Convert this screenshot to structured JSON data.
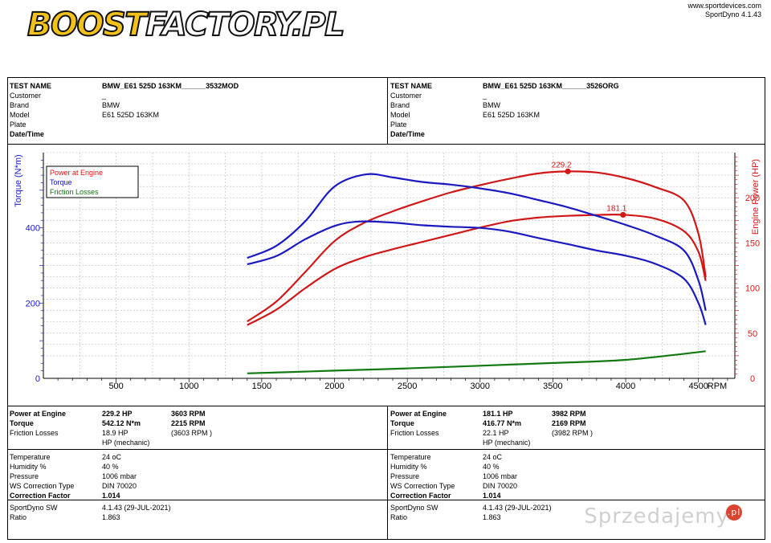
{
  "header": {
    "logo_part1": "BOOST",
    "logo_part2": "FACTORY.PL",
    "website": "www.sportdevices.com",
    "software": "SportDyno 4.1.43"
  },
  "tests": [
    {
      "rows": [
        {
          "k": "TEST NAME",
          "v": "BMW_E61 525D 163KM______3532MOD",
          "bold": true
        },
        {
          "k": "Customer",
          "v": "_",
          "bold": false
        },
        {
          "k": "Brand",
          "v": "BMW",
          "bold": false
        },
        {
          "k": "Model",
          "v": "E61 525D 163KM",
          "bold": false
        },
        {
          "k": "Plate",
          "v": "",
          "bold": false
        },
        {
          "k": "Date/Time",
          "v": "",
          "bold": true
        }
      ]
    },
    {
      "rows": [
        {
          "k": "TEST NAME",
          "v": "BMW_E61 525D 163KM______3526ORG",
          "bold": true
        },
        {
          "k": "Customer",
          "v": "_",
          "bold": false
        },
        {
          "k": "Brand",
          "v": "BMW",
          "bold": false
        },
        {
          "k": "Model",
          "v": "E61 525D 163KM",
          "bold": false
        },
        {
          "k": "Plate",
          "v": "",
          "bold": false
        },
        {
          "k": "Date/Time",
          "v": "",
          "bold": true
        }
      ]
    }
  ],
  "chart_data": {
    "type": "line",
    "xlabel": "RPM",
    "ylabel_left": "Torque (N*m)",
    "ylabel_right": "Engine Power (HP)",
    "xlim": [
      0,
      4750
    ],
    "ylim_left": [
      0,
      600
    ],
    "ylim_right": [
      0,
      250
    ],
    "x_ticks": [
      500,
      1000,
      1500,
      2000,
      2500,
      3000,
      3500,
      4000,
      4500
    ],
    "y_left_ticks": [
      0,
      200,
      400
    ],
    "y_right_ticks": [
      0,
      50,
      100,
      150,
      200
    ],
    "grid": true,
    "legend_position": "top-left",
    "legend": [
      {
        "name": "Power at Engine",
        "color": "#e01010"
      },
      {
        "name": "Torque",
        "color": "#1010cc"
      },
      {
        "name": "Friction Losses",
        "color": "#107010"
      }
    ],
    "series": [
      {
        "name": "Power at Engine",
        "axis": "right",
        "color": "#d01818",
        "x": [
          1400,
          1600,
          1800,
          2000,
          2200,
          2400,
          2600,
          2800,
          3000,
          3200,
          3400,
          3603,
          3800,
          4000,
          4200,
          4400,
          4500,
          4550
        ],
        "values": [
          63,
          85,
          118,
          152,
          172,
          185,
          196,
          206,
          214,
          221,
          227,
          229.2,
          228,
          222,
          212,
          197,
          160,
          112
        ]
      },
      {
        "name": "Power at Engine",
        "axis": "right",
        "color": "#d01818",
        "x": [
          1400,
          1600,
          1800,
          2000,
          2200,
          2400,
          2600,
          2800,
          3000,
          3200,
          3400,
          3600,
          3800,
          3982,
          4200,
          4400,
          4500,
          4550
        ],
        "values": [
          59,
          76,
          100,
          121,
          134,
          143,
          151,
          159,
          167,
          174,
          178,
          180,
          181,
          181.1,
          177,
          163,
          140,
          108
        ]
      },
      {
        "name": "Torque",
        "axis": "left",
        "color": "#1a1ac0",
        "x": [
          1400,
          1600,
          1800,
          2000,
          2215,
          2400,
          2600,
          2800,
          3000,
          3200,
          3400,
          3600,
          3800,
          4000,
          4200,
          4400,
          4500,
          4550
        ],
        "values": [
          320,
          352,
          418,
          510,
          542.12,
          534,
          522,
          515,
          505,
          492,
          474,
          455,
          432,
          408,
          380,
          340,
          260,
          180
        ]
      },
      {
        "name": "Torque",
        "axis": "left",
        "color": "#1a1ac0",
        "x": [
          1400,
          1600,
          1800,
          2000,
          2169,
          2400,
          2600,
          2800,
          3000,
          3200,
          3400,
          3600,
          3800,
          4000,
          4200,
          4400,
          4500,
          4550
        ],
        "values": [
          303,
          325,
          370,
          405,
          416.77,
          414,
          407,
          403,
          400,
          390,
          373,
          357,
          340,
          326,
          305,
          265,
          200,
          142
        ]
      },
      {
        "name": "Friction Losses",
        "axis": "right",
        "color": "#137a13",
        "x": [
          1400,
          2000,
          2500,
          3000,
          3500,
          4000,
          4550
        ],
        "values": [
          5.5,
          8.5,
          11,
          14,
          17,
          20.5,
          30
        ]
      }
    ],
    "markers": [
      {
        "x": 3603,
        "y": 229.2,
        "label": "229.2",
        "axis": "right"
      },
      {
        "x": 3982,
        "y": 181.1,
        "label": "181.1",
        "axis": "right"
      }
    ]
  },
  "results": [
    {
      "block1": [
        {
          "k": "Power at Engine",
          "v1": "229.2 HP",
          "v2": "3603 RPM",
          "bold": true
        },
        {
          "k": "Torque",
          "v1": "542.12 N*m",
          "v2": "2215 RPM",
          "bold": true
        },
        {
          "k": "Friction Losses",
          "v1": "18.9 HP",
          "v2": "(3603 RPM )",
          "bold": false
        },
        {
          "k": "",
          "v1": "HP (mechanic)",
          "v2": "",
          "bold": false
        }
      ],
      "block2": [
        {
          "k": "Temperature",
          "v1": "24 oC",
          "bold": false
        },
        {
          "k": "Humidity %",
          "v1": "40 %",
          "bold": false
        },
        {
          "k": "Pressure",
          "v1": "1006 mbar",
          "bold": false
        },
        {
          "k": "WS Correction Type",
          "v1": "DIN 70020",
          "bold": false
        },
        {
          "k": "Correction Factor",
          "v1": "1.014",
          "bold": true
        }
      ],
      "block3": [
        {
          "k": "SportDyno SW",
          "v1": "4.1.43 (29-JUL-2021)",
          "bold": false
        },
        {
          "k": "Ratio",
          "v1": "1.863",
          "bold": false
        }
      ]
    },
    {
      "block1": [
        {
          "k": "Power at Engine",
          "v1": "181.1 HP",
          "v2": "3982 RPM",
          "bold": true
        },
        {
          "k": "Torque",
          "v1": "416.77 N*m",
          "v2": "2169 RPM",
          "bold": true
        },
        {
          "k": "Friction Losses",
          "v1": "22.1 HP",
          "v2": "(3982 RPM )",
          "bold": false
        },
        {
          "k": "",
          "v1": "HP (mechanic)",
          "v2": "",
          "bold": false
        }
      ],
      "block2": [
        {
          "k": "Temperature",
          "v1": "24 oC",
          "bold": false
        },
        {
          "k": "Humidity %",
          "v1": "40 %",
          "bold": false
        },
        {
          "k": "Pressure",
          "v1": "1006 mbar",
          "bold": false
        },
        {
          "k": "WS Correction Type",
          "v1": "DIN 70020",
          "bold": false
        },
        {
          "k": "Correction Factor",
          "v1": "1.014",
          "bold": true
        }
      ],
      "block3": [
        {
          "k": "SportDyno SW",
          "v1": "4.1.43 (29-JUL-2021)",
          "bold": false
        },
        {
          "k": "Ratio",
          "v1": "1.863",
          "bold": false
        }
      ]
    }
  ],
  "watermark": {
    "text": "Sprzedajemy",
    "badge": ".pl"
  }
}
